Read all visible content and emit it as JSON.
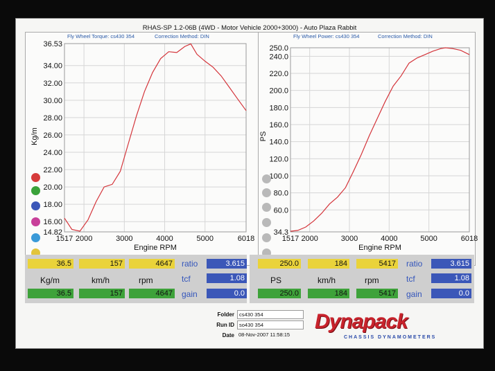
{
  "sheet": {
    "title": "RHAS-SP 1.2-06B  (4WD - Motor Vehicle 2000+3000) - Auto Plaza Rabbit"
  },
  "left_chart": {
    "subtitle_a": "Fly Wheel Torque: cs430 354",
    "subtitle_b": "Correction Method: DIN",
    "ylabel": "Kg/m",
    "xlabel": "Engine RPM",
    "swatch_colors": [
      "#d63b3b",
      "#3aa23a",
      "#3b57b8",
      "#c8409a",
      "#3a9ad8",
      "#e2c43a"
    ]
  },
  "right_chart": {
    "subtitle_a": "Fly Wheel Power: cs430 354",
    "subtitle_b": "Correction Method: DIN",
    "ylabel": "PS",
    "xlabel": "Engine RPM",
    "swatch_colors": [
      "#b9b9b9",
      "#b9b9b9",
      "#b9b9b9",
      "#b9b9b9",
      "#b9b9b9",
      "#b9b9b9"
    ]
  },
  "chart_data": [
    {
      "type": "line",
      "ylabel": "Kg/m",
      "xlabel": "Engine RPM",
      "xlim": [
        1517,
        6018
      ],
      "ylim": [
        14.82,
        36.53
      ],
      "xticks": [
        "1517",
        "2000",
        "3000",
        "4000",
        "5000",
        "6018"
      ],
      "yticks": [
        "36.53",
        "34.00",
        "32.00",
        "30.00",
        "28.00",
        "26.00",
        "24.00",
        "22.00",
        "20.00",
        "18.00",
        "16.00",
        "14.82"
      ],
      "x": [
        1517,
        1700,
        1900,
        2100,
        2300,
        2500,
        2700,
        2900,
        3100,
        3300,
        3500,
        3700,
        3900,
        4100,
        4300,
        4500,
        4647,
        4800,
        5000,
        5200,
        5400,
        5600,
        5800,
        6018
      ],
      "y": [
        16.4,
        15.1,
        14.9,
        16.2,
        18.3,
        20.0,
        20.3,
        21.8,
        25.0,
        28.2,
        31.0,
        33.2,
        34.8,
        35.6,
        35.5,
        36.2,
        36.5,
        35.3,
        34.5,
        33.8,
        32.8,
        31.5,
        30.2,
        28.8
      ],
      "series": [
        {
          "name": "",
          "color": "#d4343a"
        }
      ]
    },
    {
      "type": "line",
      "ylabel": "PS",
      "xlabel": "Engine RPM",
      "xlim": [
        1517,
        6018
      ],
      "ylim": [
        34.3,
        250.0
      ],
      "xticks": [
        "1517",
        "2000",
        "3000",
        "4000",
        "5000",
        "6018"
      ],
      "yticks": [
        "250.0",
        "240.0",
        "220.0",
        "200.0",
        "180.0",
        "160.0",
        "140.0",
        "120.0",
        "100.0",
        "80.0",
        "60.0",
        "34.3"
      ],
      "x": [
        1517,
        1700,
        1900,
        2100,
        2300,
        2500,
        2700,
        2900,
        3100,
        3300,
        3500,
        3700,
        3900,
        4100,
        4300,
        4500,
        4700,
        4900,
        5100,
        5300,
        5417,
        5600,
        5800,
        6018
      ],
      "y": [
        35.0,
        36.0,
        40.0,
        47.0,
        56.0,
        67.0,
        75.0,
        86.0,
        105.0,
        125.0,
        147.0,
        167.0,
        187.0,
        205.0,
        217.0,
        232.0,
        238.0,
        242.0,
        246.0,
        249.0,
        250.0,
        249.0,
        247.0,
        242.0
      ],
      "series": [
        {
          "name": "",
          "color": "#d4343a"
        }
      ]
    }
  ],
  "left_panel": {
    "row1": [
      "36.5",
      "157",
      "4647"
    ],
    "row2": [
      "Kg/m",
      "km/h",
      "rpm"
    ],
    "row3": [
      "36.5",
      "157",
      "4647"
    ],
    "params": [
      "ratio",
      "tcf",
      "gain"
    ],
    "param_values": [
      "3.615",
      "1.08",
      "0.0"
    ]
  },
  "right_panel": {
    "row1": [
      "250.0",
      "184",
      "5417"
    ],
    "row2": [
      "PS",
      "km/h",
      "rpm"
    ],
    "row3": [
      "250.0",
      "184",
      "5417"
    ],
    "params": [
      "ratio",
      "tcf",
      "gain"
    ],
    "param_values": [
      "3.615",
      "1.08",
      "0.0"
    ]
  },
  "info": {
    "folder_key": "Folder",
    "folder_val": "cs430 354",
    "run_key": "Run ID",
    "run_val": "so430 354",
    "date_key": "Date",
    "date_val": "08-Nov-2007  11:58:15"
  },
  "logo": {
    "name": "Dynapack",
    "tagline": "CHASSIS DYNAMOMETERS"
  }
}
